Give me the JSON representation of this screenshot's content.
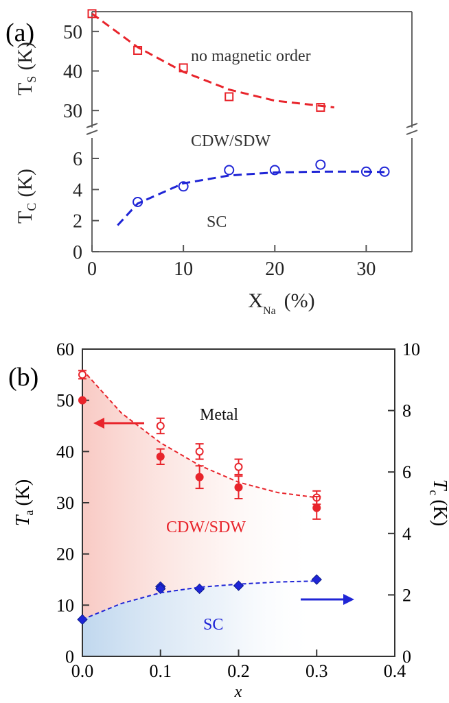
{
  "chart_data": [
    {
      "type": "scatter",
      "panel_label": "(a)",
      "xlabel_main": "X",
      "xlabel_sub": "Na",
      "xlabel_unit": "(%)",
      "xlim": [
        0,
        35
      ],
      "xticks": [
        0,
        10,
        20,
        30
      ],
      "annotations": {
        "top": "no magnetic order",
        "middle": "CDW/SDW",
        "bottom": "SC"
      },
      "top_axis": {
        "ylabel_main": "T",
        "ylabel_sub": "S",
        "ylabel_unit": "(K)",
        "ylim": [
          25,
          55
        ],
        "yticks": [
          30,
          40,
          50
        ]
      },
      "bottom_axis": {
        "ylabel_main": "T",
        "ylabel_sub": "C",
        "ylabel_unit": "(K)",
        "ylim": [
          0,
          7.5
        ],
        "yticks": [
          0,
          2,
          4,
          6
        ]
      },
      "series": [
        {
          "axis": "top",
          "color": "#e8242b",
          "marker": "open-square",
          "points": [
            [
              0,
              54.5
            ],
            [
              5,
              45.2
            ],
            [
              10,
              40.8
            ],
            [
              15,
              33.5
            ],
            [
              25,
              30.8
            ]
          ],
          "fit": [
            [
              0,
              54.5
            ],
            [
              5,
              46
            ],
            [
              10,
              39.8
            ],
            [
              15,
              35.3
            ],
            [
              20,
              32.5
            ],
            [
              25,
              31.2
            ],
            [
              26.5,
              30.8
            ]
          ]
        },
        {
          "axis": "bottom",
          "color": "#1f25d6",
          "marker": "open-circle",
          "points": [
            [
              5,
              3.2
            ],
            [
              10,
              4.2
            ],
            [
              15,
              5.25
            ],
            [
              20,
              5.25
            ],
            [
              25,
              5.6
            ],
            [
              30,
              5.15
            ],
            [
              32,
              5.15
            ]
          ],
          "fit": [
            [
              2.8,
              1.7
            ],
            [
              5,
              3.1
            ],
            [
              10,
              4.4
            ],
            [
              15,
              4.9
            ],
            [
              20,
              5.1
            ],
            [
              25,
              5.15
            ],
            [
              30,
              5.15
            ],
            [
              32,
              5.12
            ]
          ]
        }
      ]
    },
    {
      "type": "scatter",
      "panel_label": "(b)",
      "xlabel": "x",
      "xlim": [
        0,
        0.4
      ],
      "xticks": [
        "0.0",
        "0.1",
        "0.2",
        "0.3",
        "0.4"
      ],
      "ylabel_left_main": "T",
      "ylabel_left_sub": "a",
      "ylabel_left_unit": "(K)",
      "ylim_left": [
        0,
        60
      ],
      "yticks_left": [
        0,
        10,
        20,
        30,
        40,
        50,
        60
      ],
      "ylabel_right_main": "T",
      "ylabel_right_sub": "c",
      "ylabel_right_unit": "(K)",
      "ylim_right": [
        0,
        10
      ],
      "yticks_right": [
        0,
        2,
        4,
        6,
        8,
        10
      ],
      "annotations": {
        "metal": "Metal",
        "cdw": "CDW/SDW",
        "sc": "SC"
      },
      "series": [
        {
          "axis": "left",
          "color": "#e8242b",
          "marker": "open-circle-small",
          "points": [
            [
              0.0,
              55,
              0.8
            ],
            [
              0.1,
              45,
              1.5
            ],
            [
              0.15,
              40,
              1.5
            ],
            [
              0.2,
              37,
              1.5
            ],
            [
              0.3,
              31,
              1.3
            ]
          ]
        },
        {
          "axis": "left",
          "color": "#e8242b",
          "marker": "filled-circle",
          "points": [
            [
              0.0,
              50,
              0
            ],
            [
              0.1,
              39,
              1.5
            ],
            [
              0.15,
              35,
              2.2
            ],
            [
              0.2,
              33,
              2.2
            ],
            [
              0.3,
              29,
              2.2
            ]
          ]
        },
        {
          "axis": "left",
          "color": "#e8242b",
          "marker": "dashed-fit",
          "points": [
            [
              0,
              56
            ],
            [
              0.05,
              47.5
            ],
            [
              0.1,
              41.7
            ],
            [
              0.15,
              37.3
            ],
            [
              0.2,
              34
            ],
            [
              0.25,
              32
            ],
            [
              0.3,
              31
            ]
          ]
        },
        {
          "axis": "right",
          "color": "#1f25d6",
          "marker": "filled-diamond",
          "points": [
            [
              0.0,
              1.2
            ],
            [
              0.1,
              2.27
            ],
            [
              0.1,
              2.2
            ],
            [
              0.15,
              2.2
            ],
            [
              0.2,
              2.3
            ],
            [
              0.3,
              2.5
            ]
          ]
        },
        {
          "axis": "right",
          "color": "#1f25d6",
          "marker": "dashed-fit",
          "points": [
            [
              0,
              1.2
            ],
            [
              0.05,
              1.72
            ],
            [
              0.1,
              2.07
            ],
            [
              0.15,
              2.25
            ],
            [
              0.2,
              2.35
            ],
            [
              0.25,
              2.42
            ],
            [
              0.3,
              2.45
            ]
          ]
        }
      ]
    }
  ]
}
